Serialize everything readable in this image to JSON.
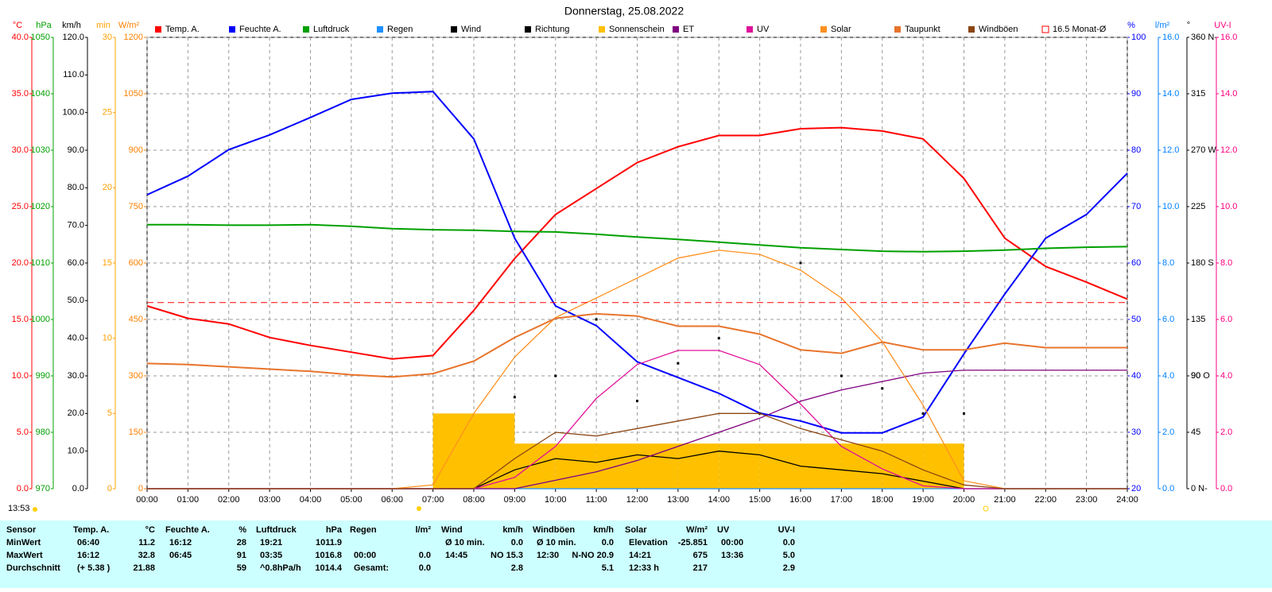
{
  "chart_data": {
    "type": "line",
    "title": "Donnerstag, 25.08.2022",
    "x": [
      0,
      1,
      2,
      3,
      4,
      5,
      6,
      7,
      8,
      9,
      10,
      11,
      12,
      13,
      14,
      15,
      16,
      17,
      18,
      19,
      20,
      21,
      22,
      23,
      24
    ],
    "xlim": [
      0,
      24
    ],
    "xticks": [
      {
        "value": 0,
        "label": "00:00"
      },
      {
        "value": 1,
        "label": "01:00"
      },
      {
        "value": 2,
        "label": "02:00"
      },
      {
        "value": 3,
        "label": "03:00"
      },
      {
        "value": 4,
        "label": "04:00"
      },
      {
        "value": 5,
        "label": "05:00"
      },
      {
        "value": 6,
        "label": "06:00"
      },
      {
        "value": 7,
        "label": "07:00"
      },
      {
        "value": 8,
        "label": "08:00"
      },
      {
        "value": 9,
        "label": "09:00"
      },
      {
        "value": 10,
        "label": "10:00"
      },
      {
        "value": 11,
        "label": "11:00"
      },
      {
        "value": 12,
        "label": "12:00"
      },
      {
        "value": 13,
        "label": "13:00"
      },
      {
        "value": 14,
        "label": "14:00"
      },
      {
        "value": 15,
        "label": "15:00"
      },
      {
        "value": 16,
        "label": "16:00"
      },
      {
        "value": 17,
        "label": "17:00"
      },
      {
        "value": 18,
        "label": "18:00"
      },
      {
        "value": 19,
        "label": "19:00"
      },
      {
        "value": 20,
        "label": "20:00"
      },
      {
        "value": 21,
        "label": "21:00"
      },
      {
        "value": 22,
        "label": "22:00"
      },
      {
        "value": 23,
        "label": "23:00"
      },
      {
        "value": 24,
        "label": "24:00"
      }
    ],
    "grid": true,
    "axes": [
      {
        "label": "°C",
        "color": "#ff0000",
        "lim": [
          0,
          40
        ],
        "ticks": [
          {
            "value": 0,
            "label": "0.0"
          },
          {
            "value": 5,
            "label": "5.0"
          },
          {
            "value": 10,
            "label": "10.0"
          },
          {
            "value": 15,
            "label": "15.0"
          },
          {
            "value": 20,
            "label": "20.0"
          },
          {
            "value": 25,
            "label": "25.0"
          },
          {
            "value": 30,
            "label": "30.0"
          },
          {
            "value": 35,
            "label": "35.0"
          },
          {
            "value": 40,
            "label": "40.0"
          }
        ]
      },
      {
        "label": "hPa",
        "color": "#00a000",
        "lim": [
          970,
          1050
        ],
        "ticks": [
          970,
          980,
          990,
          1000,
          1010,
          1020,
          1030,
          1040,
          1050
        ]
      },
      {
        "label": "km/h",
        "color": "#000000",
        "lim": [
          0,
          120
        ],
        "ticks": [
          {
            "value": 0,
            "label": "0.0"
          },
          {
            "value": 10,
            "label": "10.0"
          },
          {
            "value": 20,
            "label": "20.0"
          },
          {
            "value": 30,
            "label": "30.0"
          },
          {
            "value": 40,
            "label": "40.0"
          },
          {
            "value": 50,
            "label": "50.0"
          },
          {
            "value": 60,
            "label": "60.0"
          },
          {
            "value": 70,
            "label": "70.0"
          },
          {
            "value": 80,
            "label": "80.0"
          },
          {
            "value": 90,
            "label": "90.0"
          },
          {
            "value": 100,
            "label": "100.0"
          },
          {
            "value": 110,
            "label": "110.0"
          },
          {
            "value": 120,
            "label": "120.0"
          }
        ]
      },
      {
        "label": "min",
        "color": "#ffa000",
        "lim": [
          0,
          30
        ],
        "ticks": [
          0,
          5,
          10,
          15,
          20,
          25,
          30
        ]
      },
      {
        "label": "W/m²",
        "color": "#ff8000",
        "lim": [
          0,
          1200
        ],
        "ticks": [
          0,
          150,
          300,
          450,
          600,
          750,
          900,
          1050,
          1200
        ]
      },
      {
        "label": "%",
        "color": "#0000ff",
        "lim": [
          20,
          100
        ],
        "ticks": [
          20,
          30,
          40,
          50,
          60,
          70,
          80,
          90,
          100
        ]
      },
      {
        "label": "l/m²",
        "color": "#0080ff",
        "lim": [
          0,
          16
        ],
        "ticks": [
          {
            "value": 0,
            "label": "0.0"
          },
          {
            "value": 2,
            "label": "2.0"
          },
          {
            "value": 4,
            "label": "4.0"
          },
          {
            "value": 6,
            "label": "6.0"
          },
          {
            "value": 8,
            "label": "8.0"
          },
          {
            "value": 10,
            "label": "10.0"
          },
          {
            "value": 12,
            "label": "12.0"
          },
          {
            "value": 14,
            "label": "14.0"
          },
          {
            "value": 16,
            "label": "16.0"
          }
        ]
      },
      {
        "label": "°",
        "color": "#000000",
        "lim": [
          0,
          360
        ],
        "ticks": [
          {
            "value": 0,
            "label": "0 N-"
          },
          45,
          90,
          {
            "value": 90,
            "label": "90 O"
          },
          135,
          {
            "value": 180,
            "label": "180 S"
          },
          225,
          {
            "value": 270,
            "label": "270 W"
          },
          315,
          {
            "value": 360,
            "label": "360 N-"
          }
        ]
      },
      {
        "label": "UV-I",
        "color": "#ff0080",
        "lim": [
          0,
          16
        ],
        "ticks": [
          {
            "value": 0,
            "label": "0.0"
          },
          {
            "value": 2,
            "label": "2.0"
          },
          {
            "value": 4,
            "label": "4.0"
          },
          {
            "value": 6,
            "label": "6.0"
          },
          {
            "value": 8,
            "label": "8.0"
          },
          {
            "value": 10,
            "label": "10.0"
          },
          {
            "value": 12,
            "label": "12.0"
          },
          {
            "value": 14,
            "label": "14.0"
          },
          {
            "value": 16,
            "label": "16.0"
          }
        ]
      }
    ],
    "series": [
      {
        "name": "Temp. A.",
        "color": "#ff0000",
        "axis": "°C",
        "style": "line",
        "values": [
          16.2,
          15.1,
          14.6,
          13.4,
          12.7,
          12.1,
          11.5,
          11.8,
          15.8,
          20.4,
          24.3,
          26.6,
          28.9,
          30.3,
          31.3,
          31.3,
          31.9,
          32.0,
          31.7,
          31.0,
          27.5,
          22.2,
          19.7,
          18.3,
          16.8
        ]
      },
      {
        "name": "Feuchte A.",
        "color": "#0000ff",
        "axis": "%",
        "style": "line",
        "values": [
          72.1,
          75.4,
          80.1,
          82.7,
          85.8,
          89.0,
          90.1,
          90.4,
          82.0,
          64.4,
          52.4,
          48.9,
          42.5,
          39.7,
          36.9,
          33.4,
          32.0,
          29.9,
          29.9,
          32.7,
          43.9,
          54.5,
          64.4,
          68.6,
          75.9
        ]
      },
      {
        "name": "Luftdruck",
        "color": "#00a000",
        "axis": "hPa",
        "style": "line",
        "values": [
          1016.8,
          1016.8,
          1016.7,
          1016.7,
          1016.8,
          1016.5,
          1016.1,
          1015.9,
          1015.8,
          1015.6,
          1015.5,
          1015.1,
          1014.6,
          1014.2,
          1013.7,
          1013.2,
          1012.7,
          1012.4,
          1012.1,
          1012.0,
          1012.1,
          1012.3,
          1012.6,
          1012.8,
          1012.9
        ]
      },
      {
        "name": "Regen",
        "color": "#1e90ff",
        "axis": "l/m²",
        "style": "line",
        "values": [
          0,
          0,
          0,
          0,
          0,
          0,
          0,
          0,
          0,
          0,
          0,
          0,
          0,
          0,
          0,
          0,
          0,
          0,
          0,
          0,
          0,
          0,
          0,
          0,
          0
        ]
      },
      {
        "name": "Wind",
        "color": "#000000",
        "axis": "km/h",
        "style": "line",
        "values": [
          0,
          0,
          0,
          0,
          0,
          0,
          0,
          0,
          0,
          5,
          8,
          7,
          9,
          8,
          10,
          9,
          6,
          5,
          4,
          2,
          0,
          0,
          0,
          0,
          0
        ]
      },
      {
        "name": "Richtung",
        "color": "#000000",
        "axis": "°",
        "style": "dots",
        "values": [
          null,
          null,
          null,
          null,
          null,
          null,
          null,
          null,
          null,
          73,
          90,
          135,
          70,
          100,
          120,
          60,
          180,
          90,
          80,
          60,
          60,
          null,
          null,
          null,
          null
        ]
      },
      {
        "name": "Sonnenschein",
        "color": "#ffc000",
        "axis": "min",
        "style": "bar",
        "values": [
          0,
          0,
          0,
          0,
          0,
          0,
          0,
          5,
          5,
          3,
          3,
          3,
          3,
          3,
          3,
          3,
          3,
          3,
          3,
          3,
          0,
          0,
          0,
          0,
          null
        ]
      },
      {
        "name": "ET",
        "color": "#800080",
        "axis": "l/m²",
        "style": "line",
        "values": [
          0,
          0,
          0,
          0,
          0,
          0,
          0,
          0,
          0,
          0,
          0.3,
          0.6,
          1.0,
          1.5,
          2.0,
          2.5,
          3.1,
          3.5,
          3.8,
          4.1,
          4.2,
          4.2,
          4.2,
          4.2,
          4.2
        ]
      },
      {
        "name": "UV",
        "color": "#e0109a",
        "axis": "UV-I",
        "style": "line",
        "values": [
          0,
          0,
          0,
          0,
          0,
          0,
          0,
          0,
          0,
          0.4,
          1.5,
          3.2,
          4.4,
          4.9,
          4.9,
          4.4,
          3.0,
          1.5,
          0.7,
          0.1,
          0,
          0,
          0,
          0,
          0
        ]
      },
      {
        "name": "Solar",
        "color": "#ff9020",
        "axis": "W/m²",
        "style": "line",
        "values": [
          0,
          0,
          0,
          0,
          0,
          0,
          0,
          10,
          200,
          350,
          455,
          507,
          560,
          613,
          634,
          623,
          581,
          507,
          391,
          222,
          21,
          0,
          0,
          0,
          0
        ]
      },
      {
        "name": "Taupunkt",
        "color": "#e8742c",
        "axis": "°C",
        "style": "line",
        "values": [
          11.1,
          11.0,
          10.8,
          10.6,
          10.4,
          10.1,
          9.9,
          10.2,
          11.3,
          13.4,
          15.1,
          15.5,
          15.3,
          14.4,
          14.4,
          13.7,
          12.3,
          12.0,
          13.0,
          12.3,
          12.3,
          12.9,
          12.5,
          12.5,
          12.5
        ]
      },
      {
        "name": "Windböen",
        "color": "#8b4513",
        "axis": "km/h",
        "style": "line",
        "values": [
          0,
          0,
          0,
          0,
          0,
          0,
          0,
          0,
          0,
          8,
          15,
          14,
          16,
          18,
          20,
          20,
          16,
          13,
          10,
          5,
          1,
          0,
          0,
          0,
          0
        ]
      }
    ],
    "reference": {
      "name": "16.5 Monat-Ø",
      "value": 16.5,
      "axis": "°C",
      "color": "#ff0000"
    },
    "daylength": "13:53"
  },
  "table": {
    "row_labels": [
      "Sensor",
      "MinWert",
      "MaxWert",
      "Durchschnitt"
    ],
    "columns": [
      {
        "title": "Temp. A.",
        "unit": "°C",
        "rows": [
          [
            "06:40",
            "11.2"
          ],
          [
            "16:12",
            "32.8"
          ],
          [
            "(+ 5.38 )",
            "21.88"
          ]
        ]
      },
      {
        "title": "Feuchte A.",
        "unit": "%",
        "rows": [
          [
            "16:12",
            "28"
          ],
          [
            "06:45",
            "91"
          ],
          [
            null,
            "59"
          ]
        ]
      },
      {
        "title": "Luftdruck",
        "unit": "hPa",
        "rows": [
          [
            "19:21",
            "1011.9"
          ],
          [
            "03:35",
            "1016.8"
          ],
          [
            "^0.8hPa/h",
            "1014.4"
          ]
        ]
      },
      {
        "title": "Regen",
        "unit": "l/m²",
        "rows": [
          [
            null,
            null
          ],
          [
            "00:00",
            "0.0"
          ],
          [
            "Gesamt:",
            "0.0"
          ]
        ]
      },
      {
        "title": "Wind",
        "unit": "km/h",
        "rows": [
          [
            "Ø 10 min.",
            "0.0"
          ],
          [
            "14:45",
            "NO 15.3"
          ],
          [
            null,
            "2.8"
          ]
        ]
      },
      {
        "title": "Windböen",
        "unit": "km/h",
        "rows": [
          [
            "Ø 10 min.",
            "0.0"
          ],
          [
            "12:30",
            "N-NO 20.9"
          ],
          [
            null,
            "5.1"
          ]
        ]
      },
      {
        "title": "Solar",
        "unit": "W/m²",
        "rows": [
          [
            "Elevation",
            "-25.851"
          ],
          [
            "14:21",
            "675"
          ],
          [
            "12:33 h",
            "217"
          ]
        ]
      },
      {
        "title": "UV",
        "unit": "UV-I",
        "rows": [
          [
            "00:00",
            "0.0"
          ],
          [
            "13:36",
            "5.0"
          ],
          [
            null,
            "2.9"
          ]
        ]
      }
    ]
  }
}
